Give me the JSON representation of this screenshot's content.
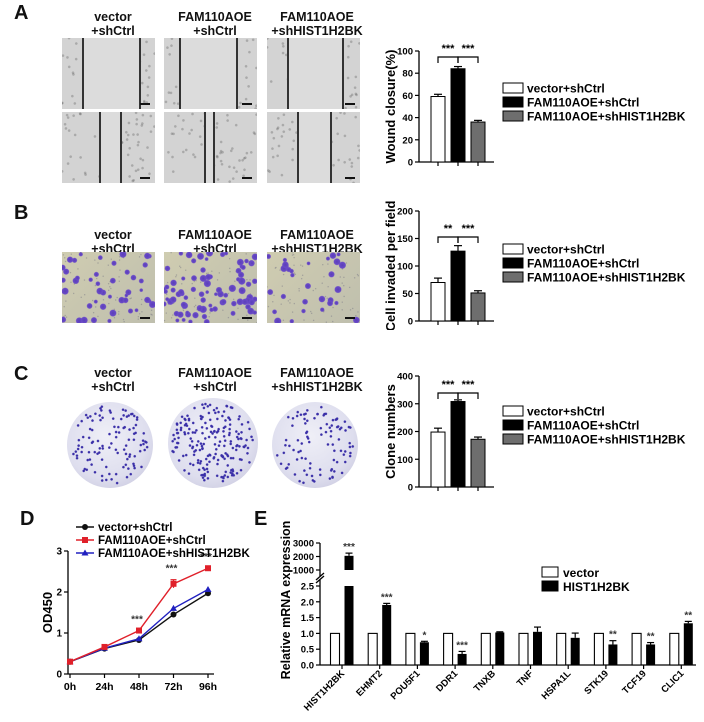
{
  "panels": {
    "A": {
      "letter": "A",
      "conditions": [
        {
          "line1": "vector",
          "line2": "+shCtrl"
        },
        {
          "line1": "FAM110AOE",
          "line2": "+shCtrl"
        },
        {
          "line1": "FAM110AOE",
          "line2": "+shHIST1H2BK"
        }
      ]
    },
    "B": {
      "letter": "B",
      "conditions": [
        {
          "line1": "vector",
          "line2": "+shCtrl"
        },
        {
          "line1": "FAM110AOE",
          "line2": "+shCtrl"
        },
        {
          "line1": "FAM110AOE",
          "line2": "+shHIST1H2BK"
        }
      ]
    },
    "C": {
      "letter": "C",
      "conditions": [
        {
          "line1": "vector",
          "line2": "+shCtrl"
        },
        {
          "line1": "FAM110AOE",
          "line2": "+shCtrl"
        },
        {
          "line1": "FAM110AOE",
          "line2": "+shHIST1H2BK"
        }
      ]
    },
    "D": {
      "letter": "D"
    },
    "E": {
      "letter": "E"
    }
  },
  "legend3": [
    "vector+shCtrl",
    "FAM110AOE+shCtrl",
    "FAM110AOE+shHIST1H2BK"
  ],
  "colors": {
    "white_bar": "#ffffff",
    "black_bar": "#000000",
    "gray_bar": "#6e6e6e",
    "red": "#e0202a",
    "blue": "#2020c0",
    "black": "#111111"
  },
  "chart_data": [
    {
      "id": "A",
      "type": "bar",
      "title": "",
      "xlabel": "",
      "ylabel": "Wound closure(%)",
      "ylim": [
        0,
        100
      ],
      "yticks": [
        0,
        20,
        40,
        60,
        80,
        100
      ],
      "categories": [
        "vector+shCtrl",
        "FAM110AOE+shCtrl",
        "FAM110AOE+shHIST1H2BK"
      ],
      "values": [
        59,
        84,
        36
      ],
      "errors": [
        2,
        2,
        1.5
      ],
      "significance": [
        {
          "from": 0,
          "to": 1,
          "label": "***"
        },
        {
          "from": 1,
          "to": 2,
          "label": "***"
        }
      ],
      "legend_position": "right",
      "grid": false
    },
    {
      "id": "B",
      "type": "bar",
      "ylabel": "Cell invaded per field",
      "ylim": [
        0,
        200
      ],
      "yticks": [
        0,
        50,
        100,
        150,
        200
      ],
      "categories": [
        "vector+shCtrl",
        "FAM110AOE+shCtrl",
        "FAM110AOE+shHIST1H2BK"
      ],
      "values": [
        70,
        127,
        51
      ],
      "errors": [
        8,
        10,
        4
      ],
      "significance": [
        {
          "from": 0,
          "to": 1,
          "label": "**"
        },
        {
          "from": 1,
          "to": 2,
          "label": "***"
        }
      ],
      "legend_position": "right",
      "grid": false
    },
    {
      "id": "C",
      "type": "bar",
      "ylabel": "Clone numbers",
      "ylim": [
        0,
        400
      ],
      "yticks": [
        0,
        100,
        200,
        300,
        400
      ],
      "categories": [
        "vector+shCtrl",
        "FAM110AOE+shCtrl",
        "FAM110AOE+shHIST1H2BK"
      ],
      "values": [
        198,
        308,
        172
      ],
      "errors": [
        14,
        6,
        8
      ],
      "significance": [
        {
          "from": 0,
          "to": 1,
          "label": "***"
        },
        {
          "from": 1,
          "to": 2,
          "label": "***"
        }
      ],
      "legend_position": "right",
      "grid": false
    },
    {
      "id": "D",
      "type": "line",
      "ylabel": "OD450",
      "xlabel": "",
      "ylim": [
        0,
        3
      ],
      "yticks": [
        0,
        1,
        2,
        3
      ],
      "x": [
        "0h",
        "24h",
        "48h",
        "72h",
        "96h"
      ],
      "series": [
        {
          "name": "vector+shCtrl",
          "color": "#111111",
          "marker": "circle",
          "values": [
            0.3,
            0.62,
            0.83,
            1.45,
            1.97
          ]
        },
        {
          "name": "FAM110AOE+shCtrl",
          "color": "#e0202a",
          "marker": "square",
          "values": [
            0.3,
            0.66,
            1.06,
            2.2,
            2.58
          ],
          "errors": [
            0,
            0,
            0.03,
            0.1,
            0.03
          ]
        },
        {
          "name": "FAM110AOE+shHIST1H2BK",
          "color": "#2020c0",
          "marker": "triangle",
          "values": [
            0.3,
            0.63,
            0.86,
            1.6,
            2.06
          ]
        }
      ],
      "annotations": [
        {
          "x": "48h",
          "label": "***"
        },
        {
          "x": "72h",
          "label": "***"
        },
        {
          "x": "96h",
          "label": "***"
        }
      ],
      "legend_position": "top",
      "grid": false
    },
    {
      "id": "E",
      "type": "bar",
      "ylabel": "Relative mRNA expression",
      "broken_axis": {
        "lower": [
          0,
          2.5
        ],
        "lower_ticks": [
          "0.0",
          "0.5",
          "1.0",
          "1.5",
          "2.0",
          "2.5"
        ],
        "upper": [
          1000,
          3000
        ],
        "upper_ticks": [
          "1000",
          "2000",
          "3000"
        ]
      },
      "categories": [
        "HIST1H2BK",
        "EHMT2",
        "POU5F1",
        "DDR1",
        "TNXB",
        "TNF",
        "HSPA1L",
        "STK19",
        "TCF19",
        "CLIC1"
      ],
      "series": [
        {
          "name": "vector",
          "color": "#ffffff",
          "values": [
            1,
            1,
            1,
            1,
            1,
            1,
            1,
            1,
            1,
            1
          ]
        },
        {
          "name": "HIST1H2BK",
          "color": "#000000",
          "values": [
            2050,
            1.9,
            0.72,
            0.35,
            1.03,
            1.05,
            0.86,
            0.65,
            0.65,
            1.32
          ],
          "errors": [
            200,
            0.05,
            0.03,
            0.08,
            0.02,
            0.15,
            0.15,
            0.12,
            0.06,
            0.06
          ]
        }
      ],
      "significance": [
        "***",
        "***",
        "*",
        "***",
        "",
        "",
        "",
        "**",
        "**",
        "**"
      ],
      "legend_position": "top-right",
      "grid": false
    }
  ]
}
